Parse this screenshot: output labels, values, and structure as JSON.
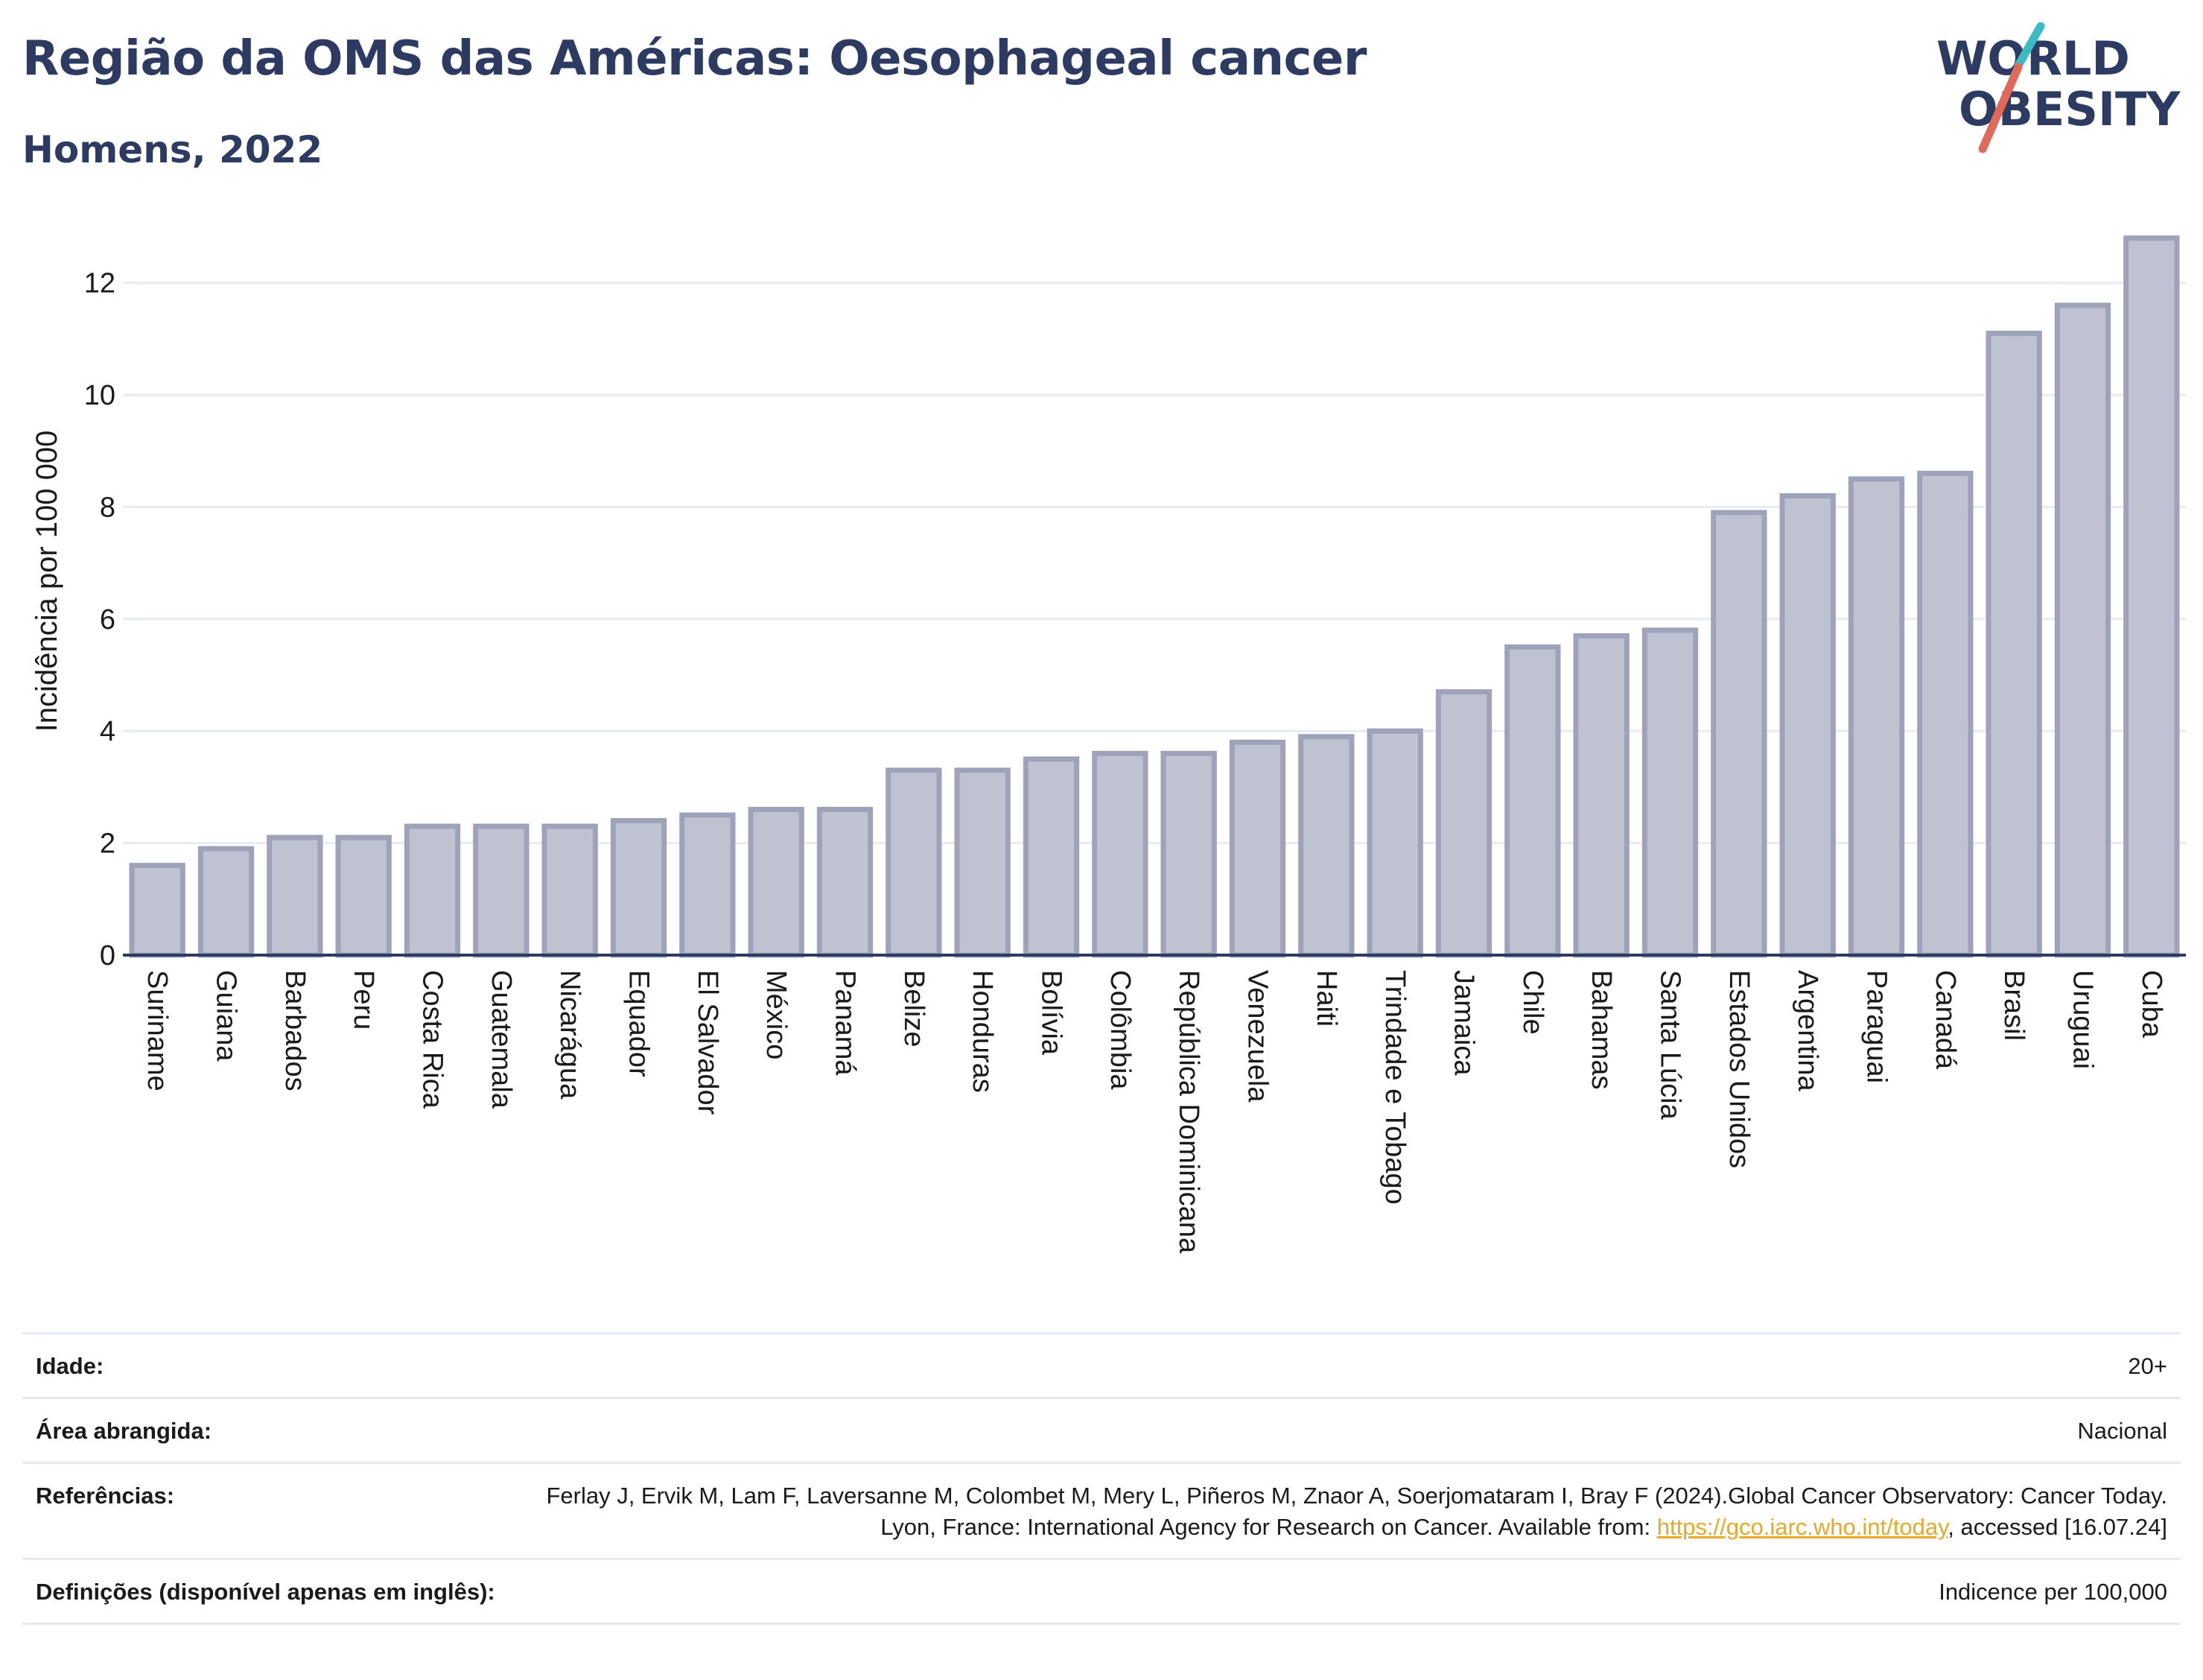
{
  "header": {
    "title": "Região da OMS das Américas: Oesophageal cancer",
    "subtitle": "Homens, 2022"
  },
  "logo": {
    "line1": "WORLD",
    "line2": "OBESITY"
  },
  "colors": {
    "title": "#2d3a62",
    "bar_fill": "#bfc2d0",
    "bar_stroke": "#9ea3ba",
    "grid": "#e8ebf0",
    "axis": "#2d3a62",
    "logo_teal": "#3bbcc4",
    "logo_coral": "#e06a5a",
    "link": "#e8a92b"
  },
  "chart_data": {
    "type": "bar",
    "categories": [
      "Suriname",
      "Guiana",
      "Barbados",
      "Peru",
      "Costa Rica",
      "Guatemala",
      "Nicarágua",
      "Equador",
      "El Salvador",
      "México",
      "Panamá",
      "Belize",
      "Honduras",
      "Bolívia",
      "Colômbia",
      "República Dominicana",
      "Venezuela",
      "Haiti",
      "Trindade e Tobago",
      "Jamaica",
      "Chile",
      "Bahamas",
      "Santa Lúcia",
      "Estados Unidos",
      "Argentina",
      "Paraguai",
      "Canadá",
      "Brasil",
      "Uruguai",
      "Cuba"
    ],
    "values": [
      1.6,
      1.9,
      2.1,
      2.1,
      2.3,
      2.3,
      2.3,
      2.4,
      2.5,
      2.6,
      2.6,
      3.3,
      3.3,
      3.5,
      3.6,
      3.6,
      3.8,
      3.9,
      4.0,
      4.7,
      5.5,
      5.7,
      5.8,
      7.9,
      8.2,
      8.5,
      8.6,
      11.1,
      11.6,
      12.8
    ],
    "ylabel": "Incidência por 100 000",
    "yticks": [
      0,
      2,
      4,
      6,
      8,
      10,
      12
    ],
    "ylim": [
      0,
      13.3
    ],
    "grid": true
  },
  "meta": {
    "age": {
      "label": "Idade:",
      "value": "20+"
    },
    "area": {
      "label": "Área abrangida:",
      "value": "Nacional"
    },
    "refs": {
      "label": "Referências:",
      "text1": "Ferlay J, Ervik M, Lam F, Laversanne M, Colombet M, Mery L, Piñeros M, Znaor A, Soerjomataram I, Bray F (2024).Global Cancer Observatory: Cancer Today. Lyon, France: International Agency for Research on Cancer. Available from: ",
      "link": "https://gco.iarc.who.int/today",
      "text2": ", accessed [16.07.24]"
    },
    "defs": {
      "label": "Definições (disponível apenas em inglês):",
      "value": "Indicence per 100,000"
    }
  }
}
